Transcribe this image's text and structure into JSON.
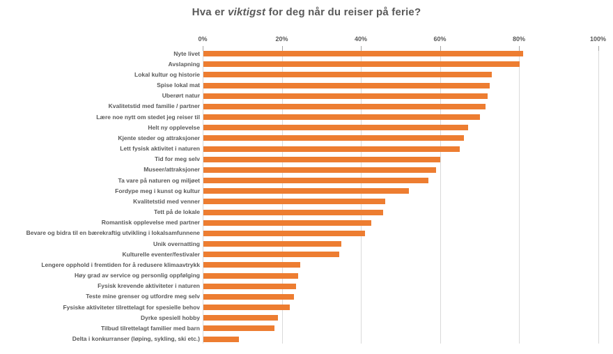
{
  "chart_data": {
    "type": "bar",
    "orientation": "horizontal",
    "title": {
      "prefix": "Hva er ",
      "emphasis": "viktigst",
      "suffix": " for deg når du reiser på ferie?",
      "full": "Hva er viktigst for deg når du reiser på ferie?"
    },
    "categories": [
      "Nyte livet",
      "Avslapning",
      "Lokal kultur og historie",
      "Spise lokal mat",
      "Uberørt natur",
      "Kvalitetstid med familie / partner",
      "Lære noe nytt om stedet jeg reiser til",
      "Helt ny opplevelse",
      "Kjente steder og attraksjoner",
      "Lett fysisk aktivitet i naturen",
      "Tid for meg selv",
      "Museer/attraksjoner",
      "Ta vare på naturen og miljøet",
      "Fordype meg i kunst og kultur",
      "Kvalitetstid med venner",
      "Tett på de lokale",
      "Romantisk opplevelse med partner",
      "Bevare og bidra til en bærekraftig utvikling i lokalsamfunnene",
      "Unik overnatting",
      "Kulturelle eventer/festivaler",
      "Lengere opphold i fremtiden for å redusere klimaavtrykk",
      "Høy grad av service og personlig oppfølging",
      "Fysisk krevende aktiviteter i naturen",
      "Teste mine grenser og utfordre meg selv",
      "Fysiske aktiviteter tilrettelagt for spesielle behov",
      "Dyrke spesiell hobby",
      "Tilbud tilrettelagt familier med barn",
      "Delta i konkurranser (løping, sykling, ski etc.)"
    ],
    "values": [
      81,
      80,
      73,
      72.5,
      72,
      71.5,
      70,
      67,
      66,
      65,
      60,
      59,
      57,
      52,
      46,
      45.5,
      42.5,
      41,
      35,
      34.5,
      24.5,
      24,
      23.5,
      23,
      22,
      19,
      18,
      9
    ],
    "value_unit": "%",
    "xlabel": "",
    "ylabel": "",
    "x_axis": {
      "tick_labels": [
        "0%",
        "20%",
        "40%",
        "60%",
        "80%",
        "100%"
      ],
      "tick_values": [
        0,
        20,
        40,
        60,
        80,
        100
      ],
      "range": [
        0,
        100
      ]
    },
    "grid": true,
    "legend": false,
    "colors": {
      "bar": "#ED7D31",
      "gridline": "#D9D9D9",
      "tickmark": "#A6A6A6",
      "text": "#595959",
      "background": "#FFFFFF"
    }
  }
}
